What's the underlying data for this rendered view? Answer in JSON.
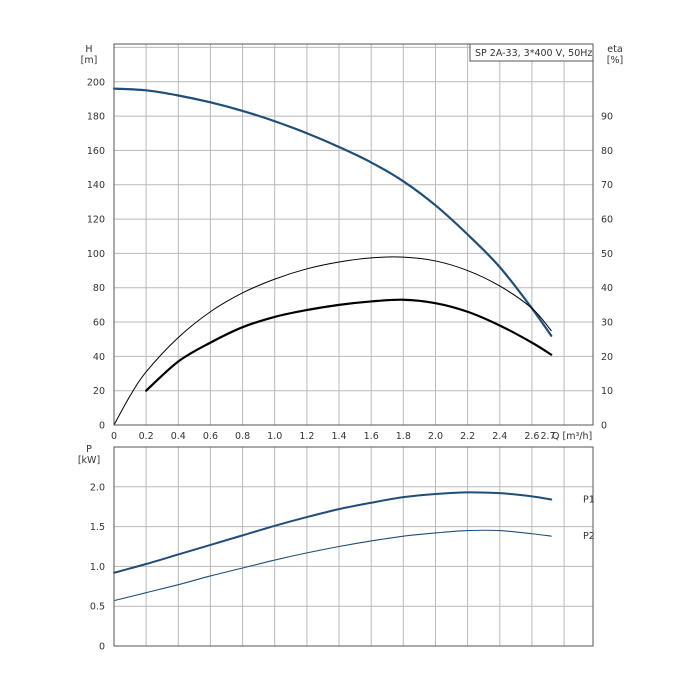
{
  "chart_data": [
    {
      "type": "line",
      "title": "SP 2A-33, 3*400 V, 50Hz",
      "xlabel": "Q [m³/h]",
      "ylabel": "H\n[m]",
      "y2label": "eta\n[%]",
      "xlim": [
        0,
        2.98
      ],
      "ylim": [
        0,
        222
      ],
      "y2lim": [
        0,
        111
      ],
      "x_ticks": [
        "0",
        "0.2",
        "0.4",
        "0.6",
        "0.8",
        "1.0",
        "1.2",
        "1.4",
        "1.6",
        "1.8",
        "2.0",
        "2.2",
        "2.4",
        "2.6",
        "2.7"
      ],
      "y_ticks": [
        "0",
        "20",
        "40",
        "60",
        "80",
        "100",
        "120",
        "140",
        "160",
        "180",
        "200"
      ],
      "y2_ticks": [
        "0",
        "10",
        "20",
        "30",
        "40",
        "50",
        "60",
        "70",
        "80",
        "90"
      ],
      "grid": true,
      "series": [
        {
          "role": "H",
          "axis": "left",
          "color": "#1f4e79",
          "x": [
            0,
            0.2,
            0.4,
            0.6,
            0.8,
            1.0,
            1.2,
            1.4,
            1.6,
            1.8,
            2.0,
            2.2,
            2.4,
            2.6,
            2.72
          ],
          "y": [
            196,
            195,
            192,
            188,
            183,
            177,
            170,
            162,
            153,
            142,
            128,
            111,
            92,
            68,
            52
          ]
        },
        {
          "role": "eta",
          "axis": "right",
          "color": "#000000",
          "x": [
            0,
            0.1,
            0.2,
            0.4,
            0.6,
            0.8,
            1.0,
            1.2,
            1.4,
            1.6,
            1.8,
            2.0,
            2.2,
            2.4,
            2.6,
            2.72
          ],
          "y": [
            0,
            8.5,
            15.5,
            25.5,
            33,
            38.5,
            42.5,
            45.5,
            47.5,
            48.7,
            48.9,
            47.8,
            45,
            40.5,
            34,
            27.5
          ]
        },
        {
          "role": "eta",
          "axis": "right",
          "color": "#000000",
          "x": [
            0.2,
            0.4,
            0.6,
            0.8,
            1.0,
            1.2,
            1.4,
            1.6,
            1.8,
            2.0,
            2.2,
            2.4,
            2.6,
            2.72
          ],
          "y": [
            10,
            18.5,
            24,
            28.5,
            31.5,
            33.5,
            35,
            36,
            36.5,
            35.5,
            33,
            29,
            24,
            20.5
          ]
        }
      ]
    },
    {
      "type": "line",
      "xlabel": "",
      "ylabel": "P\n[kW]",
      "xlim": [
        0,
        2.98
      ],
      "ylim": [
        0,
        2.5
      ],
      "y_ticks": [
        "0",
        "0.5",
        "1.0",
        "1.5",
        "2.0"
      ],
      "grid": true,
      "series": [
        {
          "name": "P1",
          "color": "#1f4e79",
          "x": [
            0,
            0.2,
            0.4,
            0.6,
            0.8,
            1.0,
            1.2,
            1.4,
            1.6,
            1.8,
            2.0,
            2.2,
            2.4,
            2.6,
            2.72
          ],
          "y": [
            0.92,
            1.03,
            1.15,
            1.27,
            1.39,
            1.51,
            1.62,
            1.72,
            1.8,
            1.87,
            1.91,
            1.93,
            1.92,
            1.88,
            1.84
          ]
        },
        {
          "name": "P2",
          "color": "#1f4e79",
          "x": [
            0,
            0.2,
            0.4,
            0.6,
            0.8,
            1.0,
            1.2,
            1.4,
            1.6,
            1.8,
            2.0,
            2.2,
            2.4,
            2.6,
            2.72
          ],
          "y": [
            0.57,
            0.67,
            0.77,
            0.88,
            0.98,
            1.08,
            1.17,
            1.25,
            1.32,
            1.38,
            1.42,
            1.45,
            1.45,
            1.41,
            1.38
          ]
        }
      ]
    }
  ]
}
